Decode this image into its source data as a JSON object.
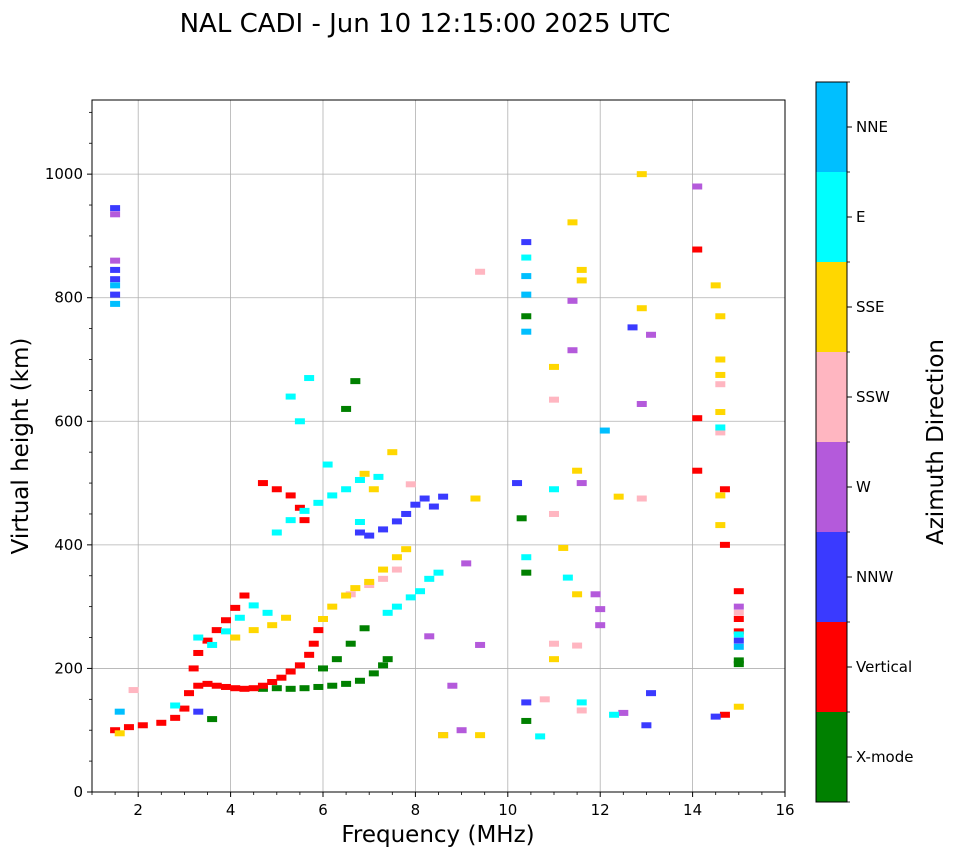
{
  "chart_data": {
    "type": "scatter",
    "title": "NAL CADI - Jun 10 12:15:00 2025 UTC",
    "xlabel": "Frequency (MHz)",
    "ylabel": "Virtual height (km)",
    "xlim": [
      1,
      16
    ],
    "ylim": [
      0,
      1120
    ],
    "xticks": [
      2,
      4,
      6,
      8,
      10,
      12,
      14,
      16
    ],
    "yticks": [
      0,
      200,
      400,
      600,
      800,
      1000
    ],
    "grid": true,
    "colorbar": {
      "label": "Azimuth Direction",
      "entries": [
        {
          "name": "X-mode",
          "color": "#008000"
        },
        {
          "name": "Vertical",
          "color": "#ff0000"
        },
        {
          "name": "NNW",
          "color": "#3a3aff"
        },
        {
          "name": "W",
          "color": "#b45adb"
        },
        {
          "name": "SSW",
          "color": "#ffb6c1"
        },
        {
          "name": "SSE",
          "color": "#ffd700"
        },
        {
          "name": "E",
          "color": "#00ffff"
        },
        {
          "name": "NNE",
          "color": "#00bfff"
        }
      ]
    },
    "series": [
      {
        "name": "X-mode",
        "points": [
          [
            3.6,
            118
          ],
          [
            4.7,
            167
          ],
          [
            5.0,
            168
          ],
          [
            5.3,
            167
          ],
          [
            5.6,
            168
          ],
          [
            5.9,
            170
          ],
          [
            6.2,
            172
          ],
          [
            6.5,
            175
          ],
          [
            6.8,
            180
          ],
          [
            7.1,
            192
          ],
          [
            7.3,
            205
          ],
          [
            7.4,
            215
          ],
          [
            6.0,
            200
          ],
          [
            6.3,
            215
          ],
          [
            6.6,
            240
          ],
          [
            6.9,
            265
          ],
          [
            6.5,
            620
          ],
          [
            6.7,
            665
          ],
          [
            10.3,
            443
          ],
          [
            10.4,
            355
          ],
          [
            10.4,
            115
          ],
          [
            10.4,
            770
          ],
          [
            15.0,
            207
          ],
          [
            15.0,
            213
          ]
        ]
      },
      {
        "name": "Vertical",
        "points": [
          [
            1.5,
            100
          ],
          [
            1.8,
            105
          ],
          [
            2.1,
            108
          ],
          [
            2.5,
            112
          ],
          [
            2.8,
            120
          ],
          [
            3.0,
            135
          ],
          [
            3.1,
            160
          ],
          [
            3.3,
            172
          ],
          [
            3.5,
            175
          ],
          [
            3.7,
            172
          ],
          [
            3.9,
            170
          ],
          [
            4.1,
            168
          ],
          [
            4.3,
            167
          ],
          [
            4.5,
            168
          ],
          [
            4.7,
            172
          ],
          [
            4.9,
            178
          ],
          [
            5.1,
            185
          ],
          [
            5.3,
            195
          ],
          [
            5.5,
            205
          ],
          [
            5.7,
            222
          ],
          [
            5.8,
            240
          ],
          [
            5.9,
            262
          ],
          [
            3.2,
            200
          ],
          [
            3.3,
            225
          ],
          [
            3.5,
            245
          ],
          [
            3.7,
            262
          ],
          [
            3.9,
            278
          ],
          [
            4.1,
            298
          ],
          [
            4.3,
            318
          ],
          [
            4.7,
            500
          ],
          [
            5.0,
            490
          ],
          [
            5.3,
            480
          ],
          [
            5.5,
            460
          ],
          [
            5.6,
            440
          ],
          [
            14.1,
            520
          ],
          [
            14.1,
            605
          ],
          [
            14.1,
            878
          ],
          [
            14.7,
            125
          ],
          [
            14.7,
            490
          ],
          [
            14.7,
            400
          ],
          [
            15.0,
            260
          ],
          [
            15.0,
            280
          ],
          [
            15.0,
            325
          ]
        ]
      },
      {
        "name": "NNW",
        "points": [
          [
            1.5,
            845
          ],
          [
            1.5,
            830
          ],
          [
            1.5,
            805
          ],
          [
            1.5,
            945
          ],
          [
            3.3,
            130
          ],
          [
            6.8,
            420
          ],
          [
            7.0,
            415
          ],
          [
            7.3,
            425
          ],
          [
            7.6,
            438
          ],
          [
            7.8,
            450
          ],
          [
            8.0,
            465
          ],
          [
            8.2,
            475
          ],
          [
            8.4,
            462
          ],
          [
            8.6,
            478
          ],
          [
            10.2,
            500
          ],
          [
            10.4,
            890
          ],
          [
            10.4,
            145
          ],
          [
            12.7,
            752
          ],
          [
            13.1,
            160
          ],
          [
            13.0,
            108
          ],
          [
            14.5,
            122
          ],
          [
            15.0,
            245
          ]
        ]
      },
      {
        "name": "W",
        "points": [
          [
            1.5,
            935
          ],
          [
            1.5,
            860
          ],
          [
            8.3,
            252
          ],
          [
            8.8,
            172
          ],
          [
            9.0,
            100
          ],
          [
            8.6,
            92
          ],
          [
            9.1,
            370
          ],
          [
            9.4,
            238
          ],
          [
            11.4,
            795
          ],
          [
            11.4,
            715
          ],
          [
            11.6,
            500
          ],
          [
            11.9,
            320
          ],
          [
            12.0,
            296
          ],
          [
            12.0,
            270
          ],
          [
            12.5,
            128
          ],
          [
            12.9,
            628
          ],
          [
            13.1,
            740
          ],
          [
            14.1,
            980
          ],
          [
            15.0,
            300
          ]
        ]
      },
      {
        "name": "SSW",
        "points": [
          [
            1.9,
            165
          ],
          [
            6.6,
            320
          ],
          [
            7.0,
            335
          ],
          [
            7.3,
            345
          ],
          [
            7.6,
            360
          ],
          [
            7.9,
            498
          ],
          [
            9.4,
            842
          ],
          [
            11.0,
            635
          ],
          [
            11.0,
            450
          ],
          [
            11.0,
            240
          ],
          [
            10.8,
            150
          ],
          [
            11.6,
            132
          ],
          [
            11.5,
            237
          ],
          [
            12.9,
            475
          ],
          [
            14.6,
            660
          ],
          [
            14.6,
            582
          ],
          [
            15.0,
            290
          ]
        ]
      },
      {
        "name": "SSE",
        "points": [
          [
            1.6,
            95
          ],
          [
            4.1,
            250
          ],
          [
            4.5,
            262
          ],
          [
            4.9,
            270
          ],
          [
            5.2,
            282
          ],
          [
            6.0,
            280
          ],
          [
            6.2,
            300
          ],
          [
            6.5,
            318
          ],
          [
            6.7,
            330
          ],
          [
            7.0,
            340
          ],
          [
            7.3,
            360
          ],
          [
            7.6,
            380
          ],
          [
            7.8,
            393
          ],
          [
            6.9,
            515
          ],
          [
            7.1,
            490
          ],
          [
            7.5,
            550
          ],
          [
            8.6,
            92
          ],
          [
            9.3,
            475
          ],
          [
            9.4,
            92
          ],
          [
            11.0,
            688
          ],
          [
            11.0,
            215
          ],
          [
            11.2,
            395
          ],
          [
            11.5,
            320
          ],
          [
            11.6,
            845
          ],
          [
            11.6,
            828
          ],
          [
            11.4,
            922
          ],
          [
            11.5,
            520
          ],
          [
            12.4,
            478
          ],
          [
            12.9,
            783
          ],
          [
            12.9,
            1000
          ],
          [
            14.5,
            820
          ],
          [
            14.6,
            770
          ],
          [
            14.6,
            700
          ],
          [
            14.6,
            675
          ],
          [
            14.6,
            615
          ],
          [
            14.6,
            480
          ],
          [
            14.6,
            432
          ],
          [
            15.0,
            138
          ]
        ]
      },
      {
        "name": "E",
        "points": [
          [
            2.8,
            140
          ],
          [
            3.3,
            250
          ],
          [
            3.6,
            238
          ],
          [
            3.9,
            260
          ],
          [
            4.2,
            282
          ],
          [
            4.5,
            302
          ],
          [
            4.8,
            290
          ],
          [
            5.0,
            420
          ],
          [
            5.3,
            440
          ],
          [
            5.6,
            455
          ],
          [
            5.9,
            468
          ],
          [
            6.2,
            480
          ],
          [
            6.5,
            490
          ],
          [
            6.8,
            505
          ],
          [
            7.2,
            510
          ],
          [
            7.4,
            290
          ],
          [
            7.6,
            300
          ],
          [
            7.9,
            315
          ],
          [
            8.1,
            325
          ],
          [
            8.3,
            345
          ],
          [
            8.5,
            355
          ],
          [
            5.5,
            600
          ],
          [
            5.3,
            640
          ],
          [
            5.7,
            670
          ],
          [
            6.1,
            530
          ],
          [
            6.8,
            437
          ],
          [
            10.4,
            380
          ],
          [
            10.4,
            865
          ],
          [
            10.7,
            90
          ],
          [
            11.0,
            490
          ],
          [
            11.3,
            347
          ],
          [
            11.6,
            145
          ],
          [
            12.3,
            125
          ],
          [
            14.6,
            590
          ],
          [
            15.0,
            255
          ]
        ]
      },
      {
        "name": "NNE",
        "points": [
          [
            1.5,
            820
          ],
          [
            1.5,
            790
          ],
          [
            1.6,
            130
          ],
          [
            10.4,
            835
          ],
          [
            10.4,
            805
          ],
          [
            10.4,
            745
          ],
          [
            12.1,
            585
          ],
          [
            15.0,
            235
          ]
        ]
      }
    ]
  }
}
